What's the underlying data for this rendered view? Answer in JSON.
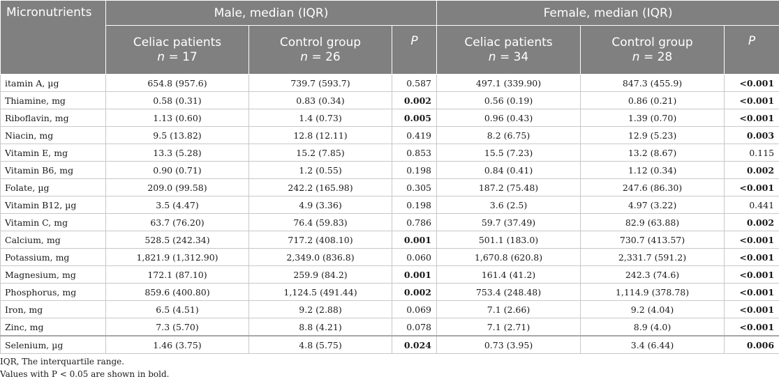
{
  "header": {
    "micronutrients": "Micronutrients",
    "male_group": "Male, median (IQR)",
    "female_group": "Female, median (IQR)",
    "celiac": "Celiac patients",
    "control": "Control group",
    "p": "P",
    "n_prefix": "n",
    "male_celiac_n": "= 17",
    "male_control_n": "= 26",
    "female_celiac_n": "= 34",
    "female_control_n": "= 28"
  },
  "rows": [
    {
      "name": "itamin A, µg",
      "m_celiac": "654.8 (957.6)",
      "m_control": "739.7 (593.7)",
      "m_p": "0.587",
      "m_p_bold": false,
      "f_celiac": "497.1 (339.90)",
      "f_control": "847.3 (455.9)",
      "f_p": "<0.001",
      "f_p_bold": true
    },
    {
      "name": "Thiamine, mg",
      "m_celiac": "0.58 (0.31)",
      "m_control": "0.83 (0.34)",
      "m_p": "0.002",
      "m_p_bold": true,
      "f_celiac": "0.56 (0.19)",
      "f_control": "0.86 (0.21)",
      "f_p": "<0.001",
      "f_p_bold": true
    },
    {
      "name": "Riboflavin, mg",
      "m_celiac": "1.13 (0.60)",
      "m_control": "1.4 (0.73)",
      "m_p": "0.005",
      "m_p_bold": true,
      "f_celiac": "0.96 (0.43)",
      "f_control": "1.39 (0.70)",
      "f_p": "<0.001",
      "f_p_bold": true
    },
    {
      "name": "Niacin, mg",
      "m_celiac": "9.5 (13.82)",
      "m_control": "12.8 (12.11)",
      "m_p": "0.419",
      "m_p_bold": false,
      "f_celiac": "8.2 (6.75)",
      "f_control": "12.9 (5.23)",
      "f_p": "0.003",
      "f_p_bold": true
    },
    {
      "name": "Vitamin E, mg",
      "m_celiac": "13.3 (5.28)",
      "m_control": "15.2 (7.85)",
      "m_p": "0.853",
      "m_p_bold": false,
      "f_celiac": "15.5 (7.23)",
      "f_control": "13.2 (8.67)",
      "f_p": "0.115",
      "f_p_bold": false
    },
    {
      "name": "Vitamin B6, mg",
      "m_celiac": "0.90 (0.71)",
      "m_control": "1.2 (0.55)",
      "m_p": "0.198",
      "m_p_bold": false,
      "f_celiac": "0.84 (0.41)",
      "f_control": "1.12 (0.34)",
      "f_p": "0.002",
      "f_p_bold": true
    },
    {
      "name": "Folate, µg",
      "m_celiac": "209.0 (99.58)",
      "m_control": "242.2 (165.98)",
      "m_p": "0.305",
      "m_p_bold": false,
      "f_celiac": "187.2 (75.48)",
      "f_control": "247.6 (86.30)",
      "f_p": "<0.001",
      "f_p_bold": true
    },
    {
      "name": "Vitamin B12, µg",
      "m_celiac": "3.5 (4.47)",
      "m_control": "4.9 (3.36)",
      "m_p": "0.198",
      "m_p_bold": false,
      "f_celiac": "3.6 (2.5)",
      "f_control": "4.97 (3.22)",
      "f_p": "0.441",
      "f_p_bold": false
    },
    {
      "name": "Vitamin C, mg",
      "m_celiac": "63.7 (76.20)",
      "m_control": "76.4 (59.83)",
      "m_p": "0.786",
      "m_p_bold": false,
      "f_celiac": "59.7 (37.49)",
      "f_control": "82.9 (63.88)",
      "f_p": "0.002",
      "f_p_bold": true
    },
    {
      "name": "Calcium, mg",
      "m_celiac": "528.5 (242.34)",
      "m_control": "717.2 (408.10)",
      "m_p": "0.001",
      "m_p_bold": true,
      "f_celiac": "501.1 (183.0)",
      "f_control": "730.7 (413.57)",
      "f_p": "<0.001",
      "f_p_bold": true
    },
    {
      "name": "Potassium, mg",
      "m_celiac": "1,821.9 (1,312.90)",
      "m_control": "2,349.0 (836.8)",
      "m_p": "0.060",
      "m_p_bold": false,
      "f_celiac": "1,670.8 (620.8)",
      "f_control": "2,331.7 (591.2)",
      "f_p": "<0.001",
      "f_p_bold": true
    },
    {
      "name": "Magnesium, mg",
      "m_celiac": "172.1 (87.10)",
      "m_control": "259.9 (84.2)",
      "m_p": "0.001",
      "m_p_bold": true,
      "f_celiac": "161.4 (41.2)",
      "f_control": "242.3 (74.6)",
      "f_p": "<0.001",
      "f_p_bold": true
    },
    {
      "name": "Phosphorus, mg",
      "m_celiac": "859.6 (400.80)",
      "m_control": "1,124.5 (491.44)",
      "m_p": "0.002",
      "m_p_bold": true,
      "f_celiac": "753.4 (248.48)",
      "f_control": "1,114.9 (378.78)",
      "f_p": "<0.001",
      "f_p_bold": true
    },
    {
      "name": "Iron, mg",
      "m_celiac": "6.5 (4.51)",
      "m_control": "9.2 (2.88)",
      "m_p": "0.069",
      "m_p_bold": false,
      "f_celiac": "7.1 (2.66)",
      "f_control": "9.2 (4.04)",
      "f_p": "<0.001",
      "f_p_bold": true
    },
    {
      "name": "Zinc, mg",
      "m_celiac": "7.3 (5.70)",
      "m_control": "8.8 (4.21)",
      "m_p": "0.078",
      "m_p_bold": false,
      "f_celiac": "7.1 (2.71)",
      "f_control": "8.9 (4.0)",
      "f_p": "<0.001",
      "f_p_bold": true
    },
    {
      "name": "Selenium, µg",
      "m_celiac": "1.46 (3.75)",
      "m_control": "4.8 (5.75)",
      "m_p": "0.024",
      "m_p_bold": true,
      "f_celiac": "0.73 (3.95)",
      "f_control": "3.4 (6.44)",
      "f_p": "0.006",
      "f_p_bold": true
    }
  ],
  "footnotes": [
    "IQR, The interquartile range.",
    "Values with P < 0.05 are shown in bold."
  ]
}
